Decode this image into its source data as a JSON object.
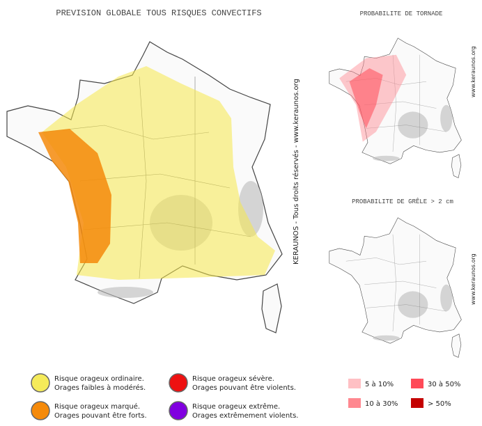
{
  "main_map": {
    "title": "PREVISION GLOBALE TOUS RISQUES CONVECTIFS",
    "credit": "KERAUNOS - Tous droits réservés - www.keraunos.org"
  },
  "tornado_map": {
    "title": "PROBABILITE DE TORNADE",
    "credit": "www.keraunos.org"
  },
  "hail_map": {
    "title": "PROBABILITE DE GRÊLE > 2 cm",
    "credit": "www.keraunos.org"
  },
  "risk_legend": [
    {
      "label": "Risque orageux ordinaire.",
      "description": "Orages faibles à modérés.",
      "color": "#f5eb5a"
    },
    {
      "label": "Risque orageux marqué.",
      "description": "Orages pouvant être forts.",
      "color": "#f58a0a"
    },
    {
      "label": "Risque orageux sévère.",
      "description": "Orages pouvant être violents.",
      "color": "#ee1111"
    },
    {
      "label": "Risque orageux extrême.",
      "description": "Orages extrêmement violents.",
      "color": "#8000e0"
    }
  ],
  "probability_legend": [
    {
      "label": "5 à 10%",
      "color": "#ffc0c4"
    },
    {
      "label": "30 à 50%",
      "color": "#ff4a58"
    },
    {
      "label": "10 à 30%",
      "color": "#ff8890"
    },
    {
      "label": "> 50%",
      "color": "#c40000"
    }
  ]
}
